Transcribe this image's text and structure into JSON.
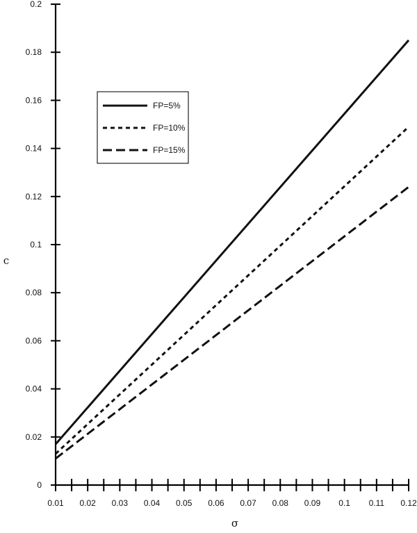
{
  "chart_data": {
    "type": "line",
    "xlabel": "σ",
    "ylabel": "c",
    "xlim": [
      0.01,
      0.12
    ],
    "ylim": [
      0,
      0.2
    ],
    "x_ticks": [
      "0.01",
      "0.02",
      "0.03",
      "0.04",
      "0.05",
      "0.06",
      "0.07",
      "0.08",
      "0.09",
      "0.1",
      "0.11",
      "0.12"
    ],
    "y_ticks": [
      "0",
      "0.02",
      "0.04",
      "0.06",
      "0.08",
      "0.1",
      "0.12",
      "0.14",
      "0.16",
      "0.18",
      "0.2"
    ],
    "x_minor_step": 0.005,
    "legend_position": "upper-left",
    "grid": false,
    "series": [
      {
        "name": "FP=5%",
        "style": "solid",
        "x": [
          0.01,
          0.12
        ],
        "y": [
          0.017,
          0.185
        ]
      },
      {
        "name": "FP=10%",
        "style": "dotted",
        "x": [
          0.01,
          0.12
        ],
        "y": [
          0.013,
          0.149
        ]
      },
      {
        "name": "FP=15%",
        "style": "dashed",
        "x": [
          0.01,
          0.12
        ],
        "y": [
          0.011,
          0.124
        ]
      }
    ]
  }
}
